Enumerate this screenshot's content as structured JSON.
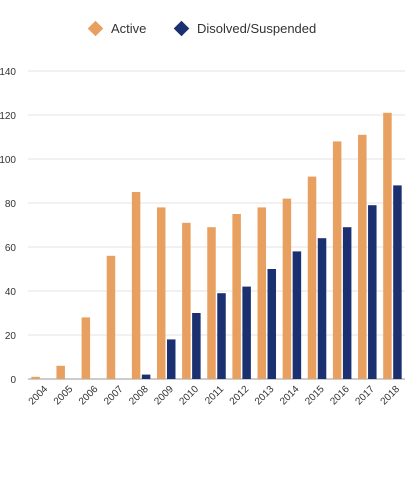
{
  "chart_data": {
    "type": "bar",
    "categories": [
      "2004",
      "2005",
      "2006",
      "2007",
      "2008",
      "2009",
      "2010",
      "2011",
      "2012",
      "2013",
      "2014",
      "2015",
      "2016",
      "2017",
      "2018"
    ],
    "series": [
      {
        "name": "Active",
        "color": "#E8A060",
        "values": [
          1,
          6,
          28,
          56,
          85,
          78,
          71,
          69,
          75,
          78,
          82,
          92,
          108,
          111,
          121
        ]
      },
      {
        "name": "Disolved/Suspended",
        "color": "#1B3070",
        "values": [
          0,
          0,
          0,
          0,
          2,
          18,
          30,
          39,
          42,
          50,
          58,
          64,
          69,
          79,
          88
        ]
      }
    ],
    "yticks": [
      "0",
      "20",
      "40",
      "60",
      "80",
      "100",
      "120",
      "140"
    ],
    "ylim": [
      0,
      140
    ],
    "grid": true,
    "legend_position": "top"
  }
}
